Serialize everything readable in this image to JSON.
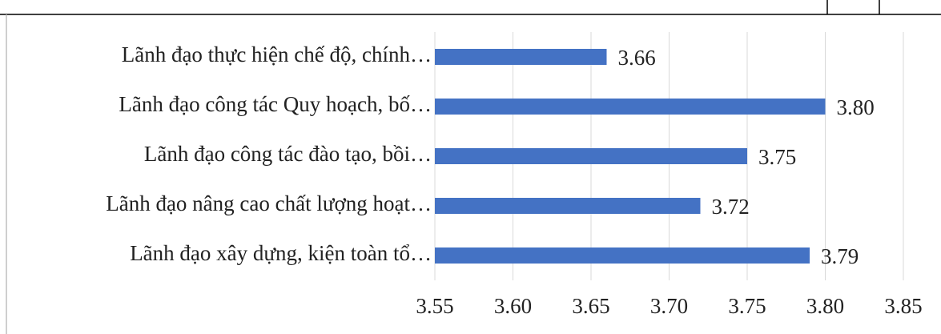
{
  "chart_data": {
    "type": "bar",
    "orientation": "horizontal",
    "categories": [
      "Lãnh đạo thực hiện chế độ, chính…",
      "Lãnh đạo công tác Quy hoạch, bố…",
      "Lãnh đạo công tác đào tạo, bồi…",
      "Lãnh đạo nâng cao chất lượng hoạt…",
      "Lãnh đạo xây dựng, kiện toàn tổ…"
    ],
    "values": [
      3.66,
      3.8,
      3.75,
      3.72,
      3.79
    ],
    "value_labels": [
      "3.66",
      "3.80",
      "3.75",
      "3.72",
      "3.79"
    ],
    "color": "#4472c4",
    "xlim": [
      3.55,
      3.85
    ],
    "xticks": [
      {
        "value": 3.55,
        "label": "3.55"
      },
      {
        "value": 3.6,
        "label": "3.60"
      },
      {
        "value": 3.65,
        "label": "3.65"
      },
      {
        "value": 3.7,
        "label": "3.70"
      },
      {
        "value": 3.75,
        "label": "3.75"
      },
      {
        "value": 3.8,
        "label": "3.80"
      },
      {
        "value": 3.85,
        "label": "3.85"
      }
    ],
    "grid": true
  }
}
